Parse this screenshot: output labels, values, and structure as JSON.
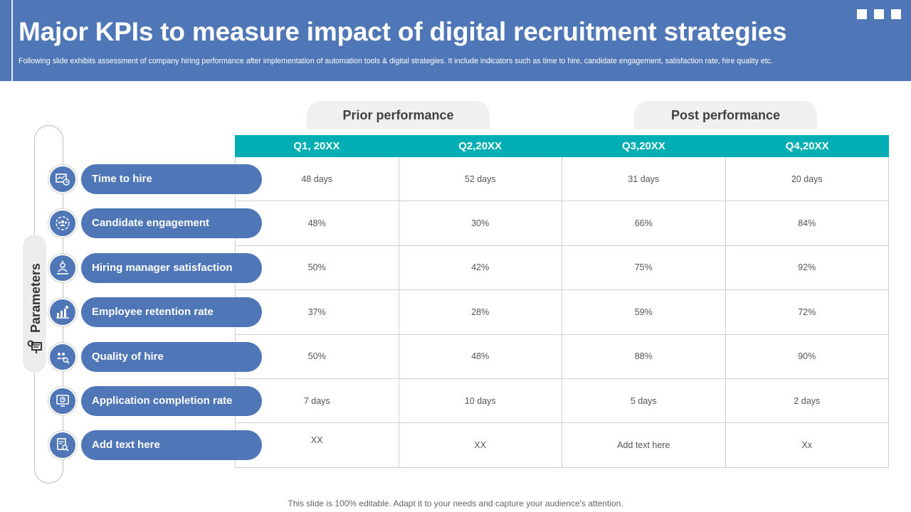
{
  "header": {
    "title": "Major KPIs to measure impact of digital recruitment strategies",
    "subtitle": "Following slide exhibits assessment of company hiring performance after implementation of automation tools & digital strategies. It include indicators such as time to hire, candidate engagement, satisfaction rate, hire quality etc."
  },
  "tabs": {
    "prior": "Prior performance",
    "post": "Post performance"
  },
  "sidebar": {
    "label": "Parameters"
  },
  "table": {
    "columns": [
      "Q1, 20XX",
      "Q2,20XX",
      "Q3,20XX",
      "Q4,20XX"
    ],
    "rows": [
      {
        "kpi": "Time to hire",
        "icon": "time-to-hire-icon",
        "values": [
          "48 days",
          "52 days",
          "31 days",
          "20 days"
        ]
      },
      {
        "kpi": "Candidate engagement",
        "icon": "candidate-engagement-icon",
        "values": [
          "48%",
          "30%",
          "66%",
          "84%"
        ]
      },
      {
        "kpi": "Hiring manager satisfaction",
        "icon": "manager-satisfaction-icon",
        "values": [
          "50%",
          "42%",
          "75%",
          "92%"
        ]
      },
      {
        "kpi": "Employee retention rate",
        "icon": "retention-chart-icon",
        "values": [
          "37%",
          "28%",
          "59%",
          "72%"
        ]
      },
      {
        "kpi": "Quality of hire",
        "icon": "quality-search-icon",
        "values": [
          "50%",
          "48%",
          "88%",
          "90%"
        ]
      },
      {
        "kpi": "Application completion rate",
        "icon": "application-monitor-icon",
        "values": [
          "7 days",
          "10 days",
          "5 days",
          "2 days"
        ]
      },
      {
        "kpi": "Add  text here",
        "icon": "document-search-icon",
        "values": [
          "XX",
          "XX",
          "Add text here",
          "Xx"
        ]
      }
    ]
  },
  "footer": {
    "note": "This slide is 100% editable. Adapt it to your needs and capture your audience's attention."
  },
  "colors": {
    "header": "#4f77b7",
    "table_header": "#00aeb3",
    "pill": "#4f77b7"
  }
}
